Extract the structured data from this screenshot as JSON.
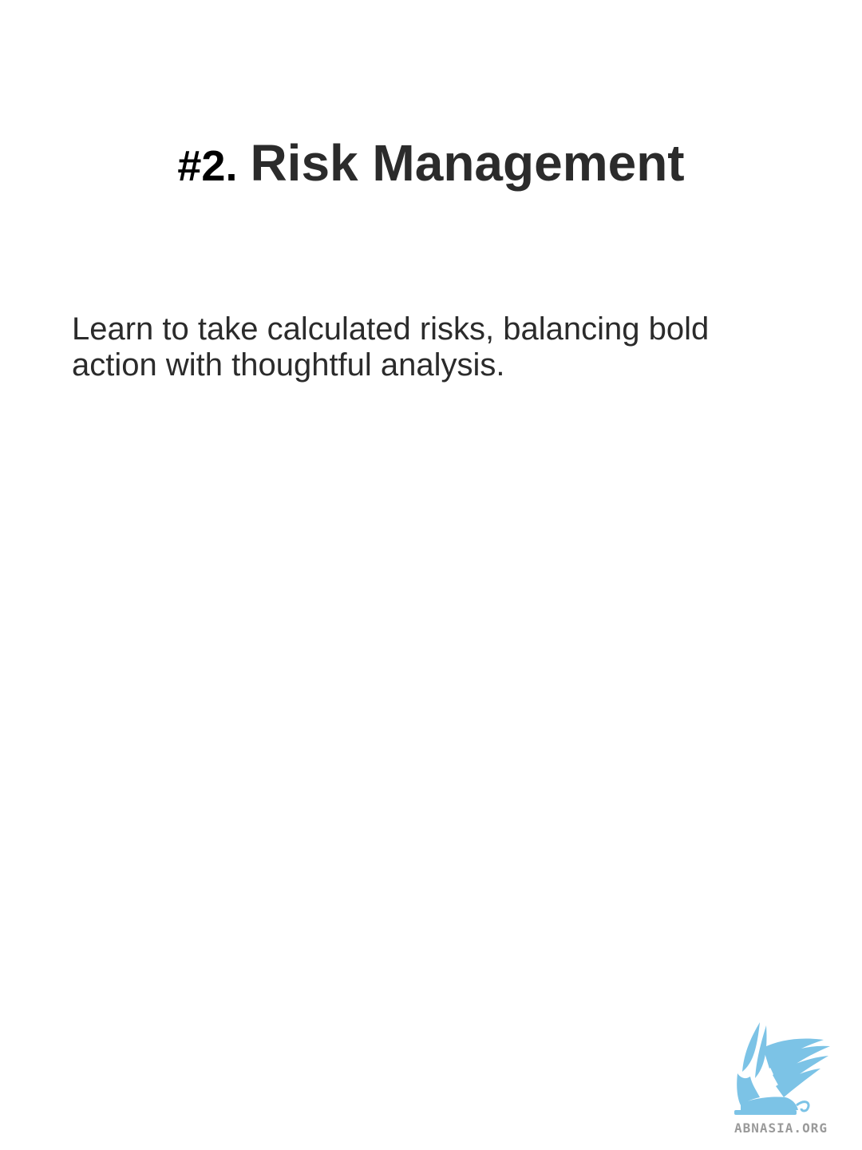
{
  "slide": {
    "number": "#2.",
    "title": "Risk Management",
    "body_lines": [
      "Learn to take calculated risks, balancing bold",
      "action with thoughtful analysis."
    ]
  },
  "logo": {
    "icon": "griffin-logo-icon",
    "text": "ABNASIA.ORG",
    "color": "#7cc3e6",
    "text_color": "#9a9a9a"
  }
}
